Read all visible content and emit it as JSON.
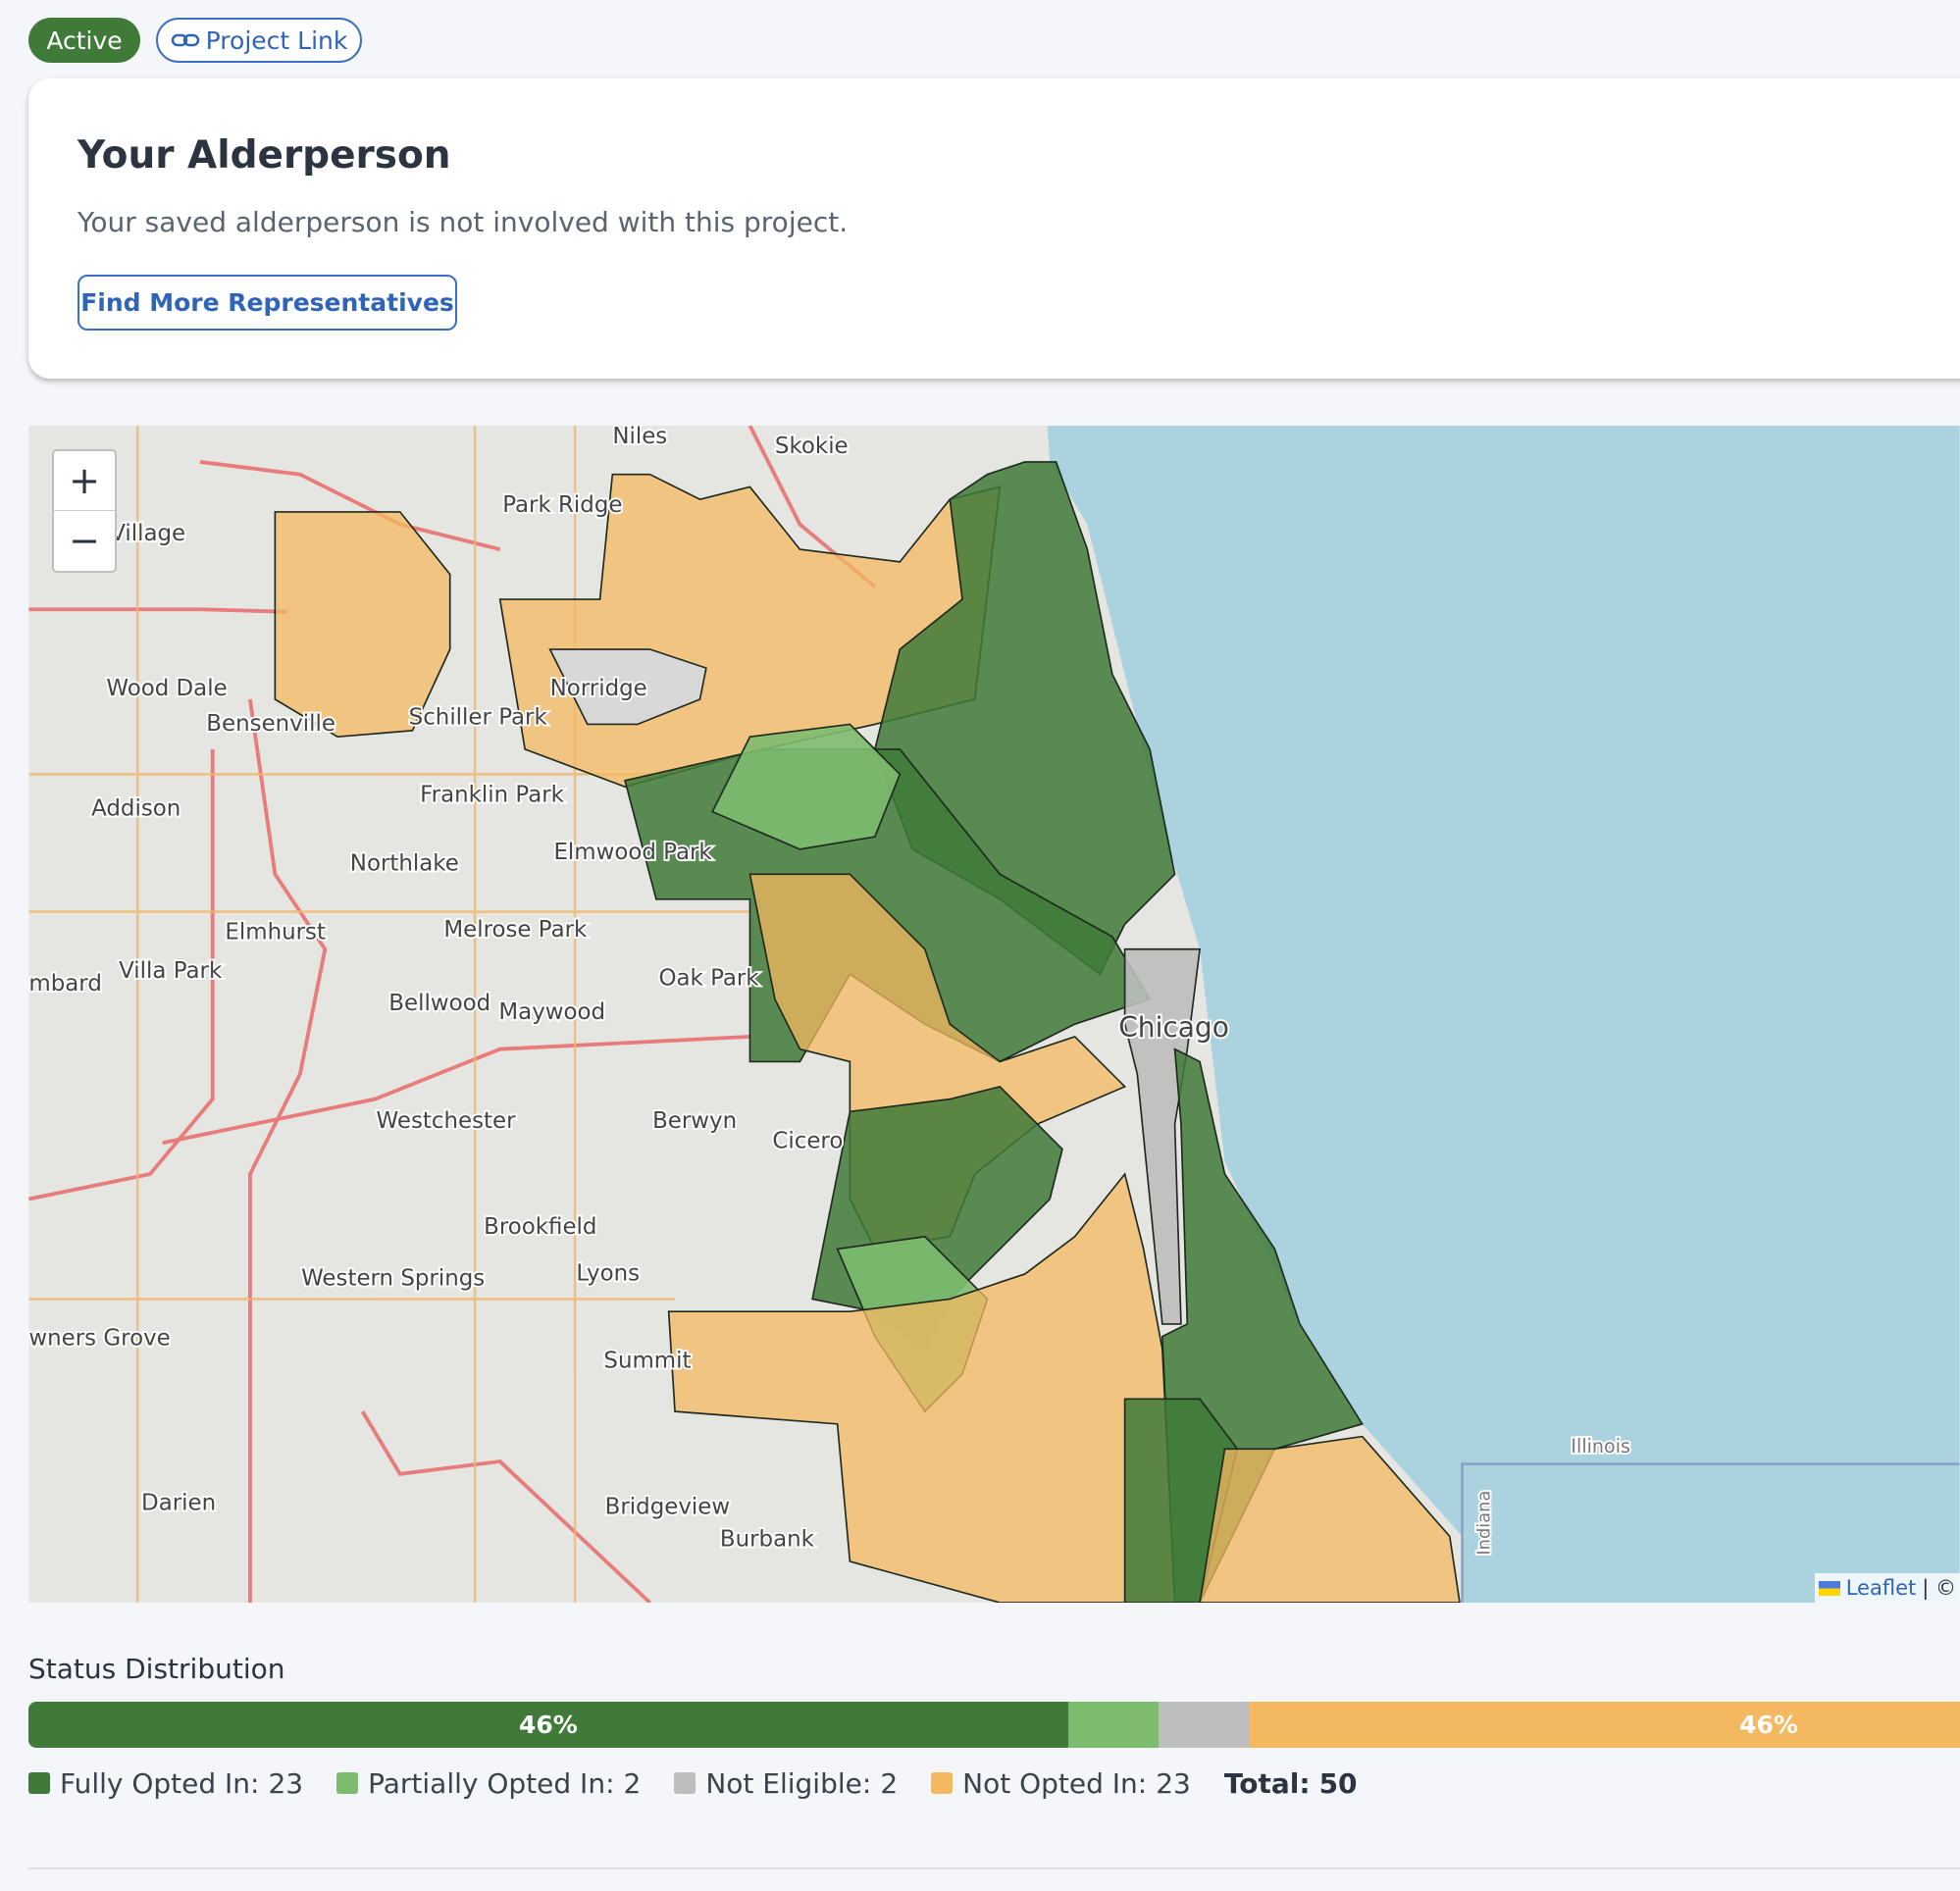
{
  "badges": {
    "status": "Active",
    "link": "Project Link"
  },
  "card": {
    "title": "Your Alderperson",
    "text": "Your saved alderperson is not involved with this project.",
    "button": "Find More Representatives"
  },
  "map": {
    "zoom_in": "+",
    "zoom_out": "−",
    "attribution": "Leaflet",
    "attribution_more": "| ©",
    "labels": [
      "Niles",
      "Skokie",
      "Park Ridge",
      "Village",
      "Wood Dale",
      "Bensenville",
      "Norridge",
      "Schiller Park",
      "Franklin Park",
      "Addison",
      "Northlake",
      "Elmwood Park",
      "Melrose Park",
      "Elmhurst",
      "Villa Park",
      "mbard",
      "Oak Park",
      "Bellwood",
      "Maywood",
      "Westchester",
      "Berwyn",
      "Cicero",
      "Brookfield",
      "Lyons",
      "Western Springs",
      "wners Grove",
      "Summit",
      "Bridgeview",
      "Burbank",
      "Darien",
      "Chicago",
      "Illinois",
      "Indiana"
    ]
  },
  "status": {
    "title": "Status Distribution",
    "segments": [
      {
        "name": "Fully Opted In:",
        "count": 23,
        "color": "#3f7a38",
        "label": "46%"
      },
      {
        "name": "Partially Opted In:",
        "count": 2,
        "color": "#7dbb6f"
      },
      {
        "name": "Not Eligible:",
        "count": 2,
        "color": "#bdbdbd"
      },
      {
        "name": "Not Opted In:",
        "count": 23,
        "color": "#f4b860",
        "label": "46%"
      }
    ],
    "total_label": "Total:",
    "total": 50
  }
}
